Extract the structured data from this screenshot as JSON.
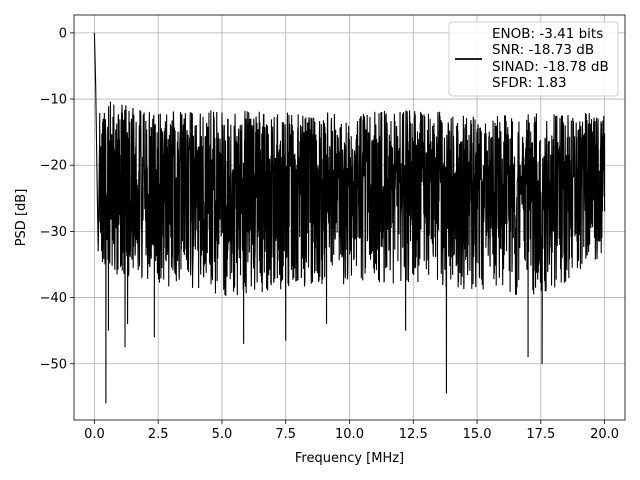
{
  "chart_data": {
    "type": "line",
    "xlabel": "Frequency [MHz]",
    "ylabel": "PSD [dB]",
    "xlim": [
      -0.8,
      20.8
    ],
    "ylim": [
      -58.5,
      2.7
    ],
    "xticks": [
      0.0,
      2.5,
      5.0,
      7.5,
      10.0,
      12.5,
      15.0,
      17.5,
      20.0
    ],
    "xtick_labels": [
      "0.0",
      "2.5",
      "5.0",
      "7.5",
      "10.0",
      "12.5",
      "15.0",
      "17.5",
      "20.0"
    ],
    "yticks": [
      0,
      -10,
      -20,
      -30,
      -40,
      -50
    ],
    "ytick_labels": [
      "0",
      "−10",
      "−20",
      "−30",
      "−40",
      "−50"
    ],
    "grid": true,
    "legend_position": "top-right",
    "legend": [
      "ENOB: -3.41 bits",
      "SNR: -18.73 dB",
      "SINAD: -18.78 dB",
      "SFDR: 1.83"
    ],
    "line_color": "#000000",
    "series": [
      {
        "x": [
          0,
          0.05,
          0.1,
          0.15,
          0.2,
          0.3,
          0.45,
          0.55,
          0.6,
          1.2,
          1.3,
          2.35,
          5.85,
          7.5,
          9.1,
          12.2,
          13.8,
          17.0,
          17.55,
          20.0
        ],
        "y": [
          0,
          -8,
          -21,
          -33,
          -17,
          -30,
          -56,
          -45,
          -22,
          -47.5,
          -44,
          -46,
          -47,
          -46.5,
          -44,
          -45,
          -54.5,
          -49,
          -50,
          -27
        ],
        "envelope": {
          "x": [
            0.2,
            2.5,
            5.0,
            7.5,
            10.0,
            12.5,
            15.0,
            17.5,
            20.0
          ],
          "upper": [
            -10,
            -12,
            -11.5,
            -12,
            -12,
            -11.5,
            -12.5,
            -12,
            -12
          ],
          "lower": [
            -36,
            -38,
            -40,
            -39,
            -38,
            -38,
            -39,
            -40,
            -34
          ]
        }
      }
    ]
  }
}
